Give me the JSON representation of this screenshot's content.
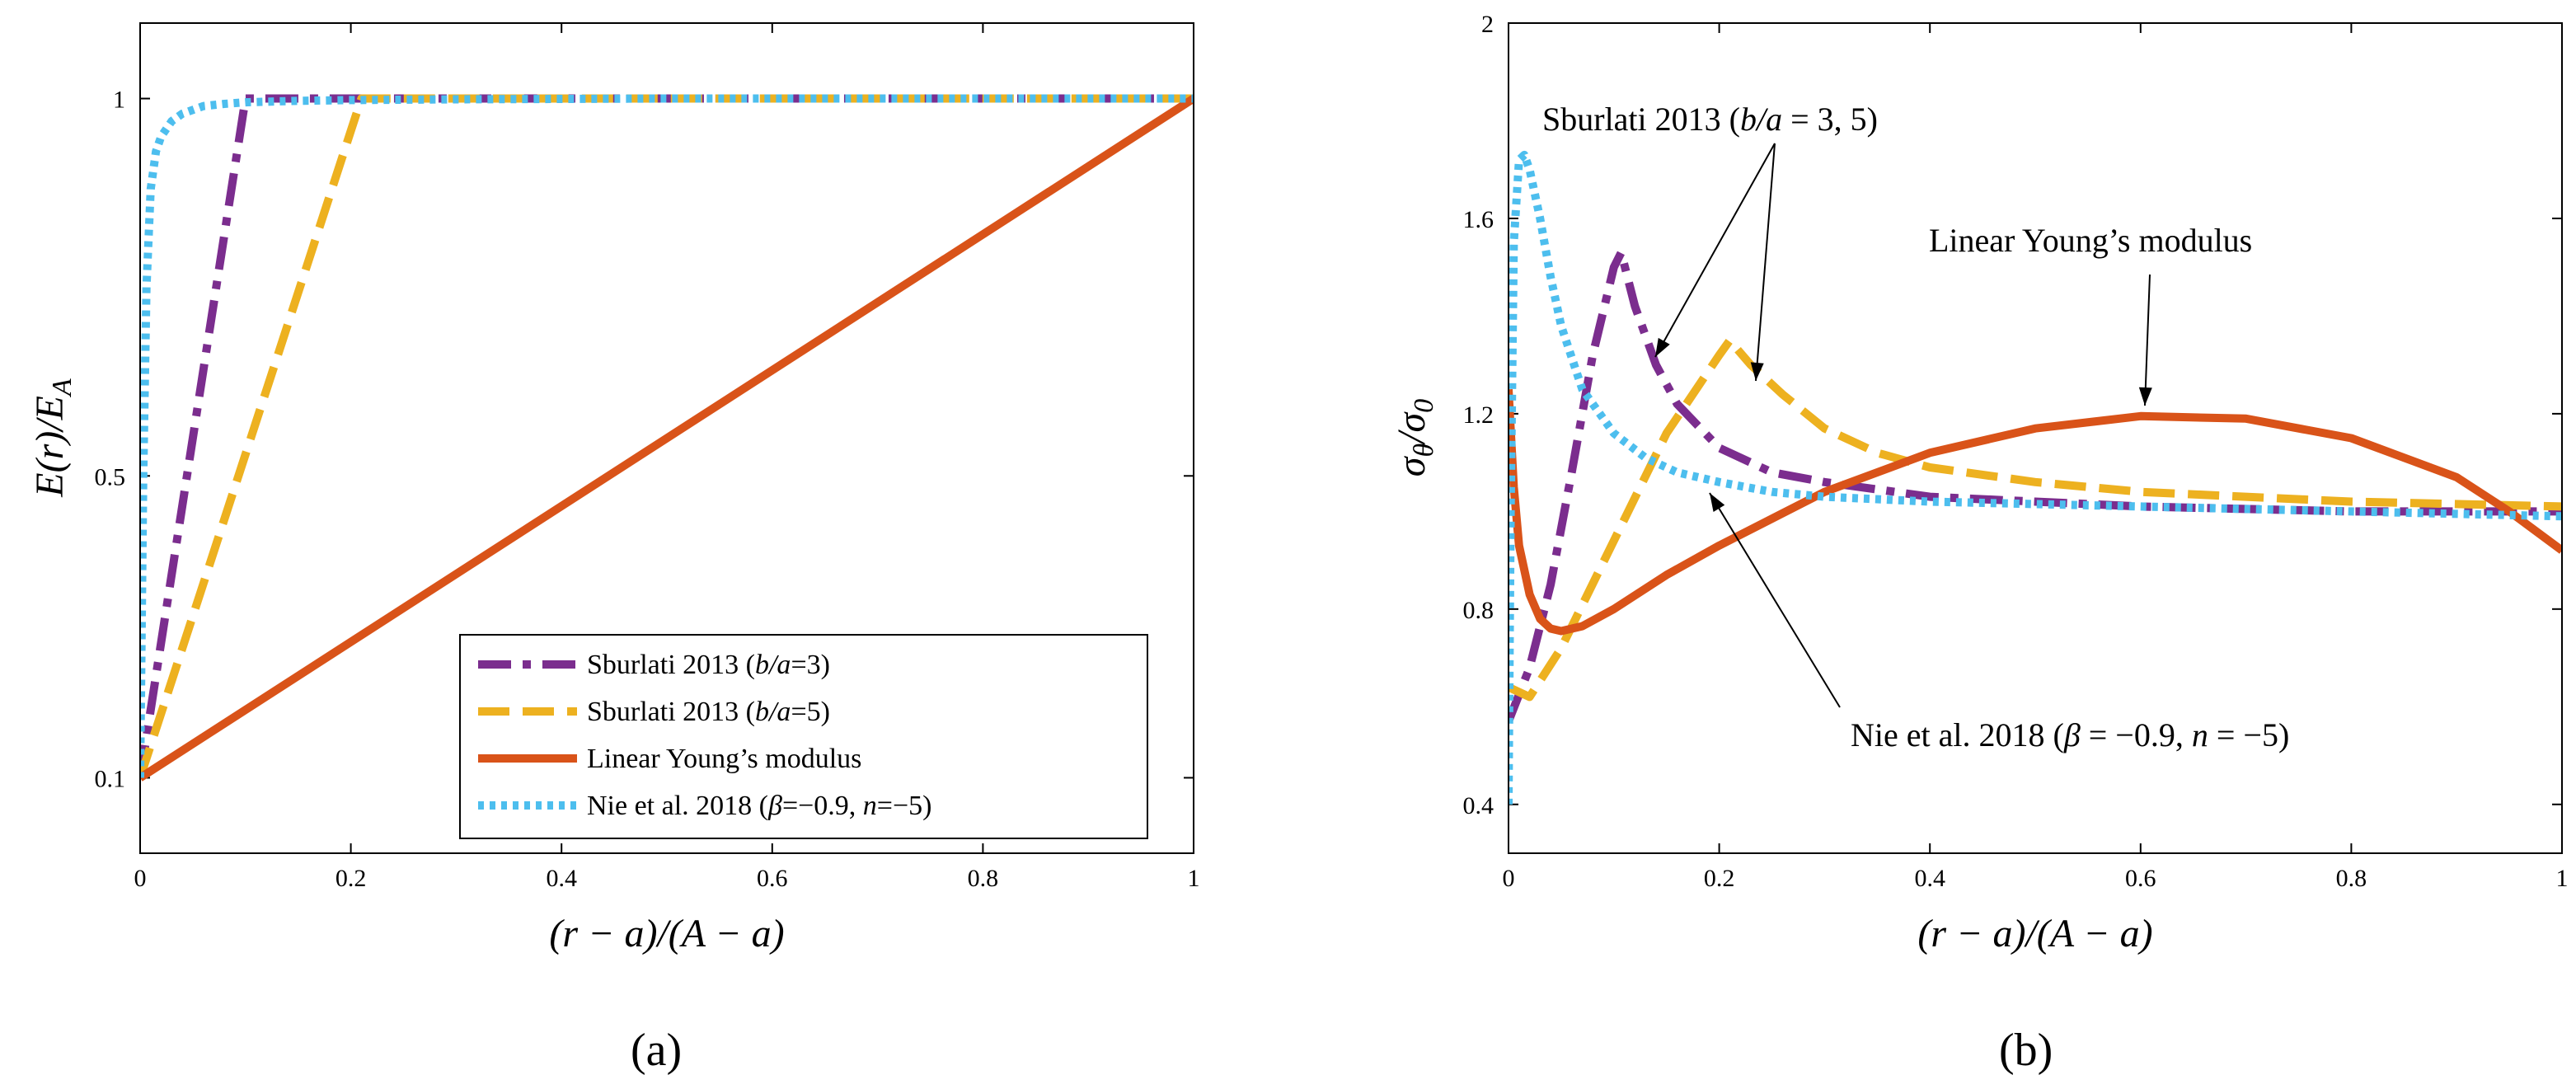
{
  "chart_data": [
    {
      "panel_label": "(a)",
      "type": "line",
      "xlabel": "(r − a)/(A − a)",
      "ylabel": "E(r)/E_A",
      "xlim": [
        0,
        1
      ],
      "ylim": [
        0.0,
        1.1
      ],
      "xticks": [
        0,
        0.2,
        0.4,
        0.6,
        0.8,
        1
      ],
      "xtick_labels": [
        "0",
        "0.2",
        "0.4",
        "0.6",
        "0.8",
        "1"
      ],
      "yticks": [
        0.1,
        0.5,
        1
      ],
      "ytick_labels": [
        "0.1",
        "0.5",
        "1"
      ],
      "legend_location": "lower-right",
      "series": [
        {
          "name": "Sburlati 2013 (b/a=3)",
          "color": "#7B2D8E",
          "style": "dash-dot",
          "x": [
            0,
            0.1,
            1
          ],
          "y": [
            0.1,
            1.0,
            1.0
          ]
        },
        {
          "name": "Sburlati 2013 (b/a=5)",
          "color": "#EDB120",
          "style": "dashed",
          "x": [
            0,
            0.21,
            1
          ],
          "y": [
            0.1,
            1.0,
            1.0
          ]
        },
        {
          "name": "Linear Young's modulus",
          "color": "#D95319",
          "style": "solid",
          "x": [
            0,
            1
          ],
          "y": [
            0.1,
            1.0
          ]
        },
        {
          "name": "Nie et al. 2018 (β=−0.9, n=−5)",
          "color": "#4DBEEE",
          "style": "dotted",
          "x": [
            0,
            0.003,
            0.006,
            0.01,
            0.015,
            0.02,
            0.03,
            0.04,
            0.06,
            0.08,
            0.1,
            0.15,
            0.2,
            0.3,
            0.5,
            0.7,
            1.0
          ],
          "y": [
            0.1,
            0.5,
            0.75,
            0.88,
            0.93,
            0.95,
            0.97,
            0.98,
            0.99,
            0.993,
            0.995,
            0.997,
            0.998,
            0.999,
            1.0,
            1.0,
            1.0
          ]
        }
      ],
      "legend_entries": {
        "s1_name": "Sburlati 2013 (",
        "s1_math": "b/a",
        "s1_val": "=3)",
        "s2_name": "Sburlati 2013 (",
        "s2_math": "b/a",
        "s2_val": "=5)",
        "s3": "Linear Young’s modulus",
        "s4_name": "Nie et al. 2018 (",
        "s4_beta": "β",
        "s4_bval": "=−0.9, ",
        "s4_n": "n",
        "s4_nval": "=−5)"
      }
    },
    {
      "panel_label": "(b)",
      "type": "line",
      "xlabel": "(r − a)/(A − a)",
      "ylabel": "σθ/σ0",
      "xlim": [
        0,
        1
      ],
      "ylim": [
        0.3,
        2.0
      ],
      "xticks": [
        0,
        0.2,
        0.4,
        0.6,
        0.8,
        1
      ],
      "xtick_labels": [
        "0",
        "0.2",
        "0.4",
        "0.6",
        "0.8",
        "1"
      ],
      "yticks": [
        0.4,
        0.8,
        1.2,
        1.6,
        2
      ],
      "ytick_labels": [
        "0.4",
        "0.8",
        "1.2",
        "1.6",
        "2"
      ],
      "series": [
        {
          "name": "Sburlati 2013 (b/a=3)",
          "color": "#7B2D8E",
          "style": "dash-dot",
          "x": [
            0,
            0.02,
            0.04,
            0.06,
            0.08,
            0.1,
            0.107,
            0.12,
            0.14,
            0.16,
            0.2,
            0.25,
            0.3,
            0.4,
            0.5,
            0.6,
            0.8,
            1.0
          ],
          "y": [
            0.57,
            0.68,
            0.85,
            1.08,
            1.32,
            1.5,
            1.53,
            1.42,
            1.3,
            1.22,
            1.13,
            1.08,
            1.06,
            1.03,
            1.02,
            1.01,
            1.0,
            1.0
          ]
        },
        {
          "name": "Sburlati 2013 (b/a=5)",
          "color": "#EDB120",
          "style": "dashed",
          "x": [
            0,
            0.02,
            0.05,
            0.1,
            0.15,
            0.2,
            0.21,
            0.23,
            0.26,
            0.3,
            0.35,
            0.4,
            0.5,
            0.6,
            0.8,
            1.0
          ],
          "y": [
            0.64,
            0.62,
            0.72,
            0.94,
            1.16,
            1.32,
            1.35,
            1.3,
            1.24,
            1.17,
            1.12,
            1.09,
            1.06,
            1.04,
            1.02,
            1.01
          ]
        },
        {
          "name": "Linear Young's modulus",
          "color": "#D95319",
          "style": "solid",
          "x": [
            0,
            0.005,
            0.01,
            0.02,
            0.03,
            0.04,
            0.05,
            0.07,
            0.1,
            0.15,
            0.2,
            0.3,
            0.4,
            0.5,
            0.6,
            0.7,
            0.8,
            0.9,
            0.95,
            1.0
          ],
          "y": [
            1.25,
            1.05,
            0.93,
            0.83,
            0.78,
            0.76,
            0.755,
            0.765,
            0.8,
            0.87,
            0.93,
            1.04,
            1.12,
            1.17,
            1.195,
            1.19,
            1.15,
            1.07,
            1.0,
            0.92
          ]
        },
        {
          "name": "Nie et al. 2018 (β=−0.9, n=−5)",
          "color": "#4DBEEE",
          "style": "dotted",
          "x": [
            0,
            0.002,
            0.005,
            0.01,
            0.015,
            0.02,
            0.03,
            0.04,
            0.05,
            0.07,
            0.1,
            0.13,
            0.16,
            0.2,
            0.25,
            0.3,
            0.4,
            0.6,
            0.8,
            1.0
          ],
          "y": [
            0.4,
            1.0,
            1.55,
            1.72,
            1.73,
            1.7,
            1.6,
            1.48,
            1.38,
            1.25,
            1.16,
            1.11,
            1.08,
            1.06,
            1.04,
            1.03,
            1.02,
            1.01,
            1.0,
            0.99
          ]
        }
      ],
      "annotations": {
        "sburlati_name": "Sburlati 2013 (",
        "sburlati_math": "b/a",
        "sburlati_val": " = 3, 5)",
        "linear": "Linear Young’s modulus",
        "nie_name": "Nie et al. 2018 (",
        "nie_beta": "β",
        "nie_bval": " = −0.9, ",
        "nie_n": "n",
        "nie_nval": " = −5)"
      }
    }
  ]
}
